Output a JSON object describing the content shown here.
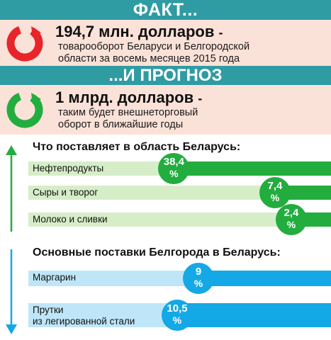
{
  "fact": {
    "banner": "ФАКТ...",
    "amount": "194,7 млн. долларов",
    "dash": "-",
    "description_line1": "товарооборот Беларуси и Белгородской",
    "description_line2": "области за восемь месяцев 2015 года"
  },
  "forecast": {
    "banner": "...И ПРОГНОЗ",
    "amount": "1 млрд. долларов",
    "dash": "-",
    "description_line1": "таким будет внешнеторговый",
    "description_line2": "оборот в ближайшие годы"
  },
  "colors": {
    "banner": "#2f9ba3",
    "info_bg": "#fbe2d8",
    "fact_icon": "#e8252b",
    "forecast_icon": "#22ad3e",
    "green_bar": "#22ad3e",
    "green_track": "#d6eec8",
    "blue_bar": "#14a8e6",
    "blue_track": "#bfe6f8"
  },
  "icons": {
    "fact": "red-circular-arrow-icon",
    "forecast": "green-circular-arrow-icon",
    "up_arrow": "green-up-arrow-icon",
    "down_arrow": "blue-down-arrow-icon"
  },
  "chart_data": [
    {
      "type": "bar",
      "title": "Что поставляет в область Беларусь:",
      "categories": [
        "Нефтепродукты",
        "Сыры и творог",
        "Молоко и сливки"
      ],
      "values": [
        38.4,
        7.4,
        2.4
      ],
      "value_labels": [
        "38,4",
        "7,4",
        "2,4"
      ],
      "unit": "%",
      "color": "#22ad3e"
    },
    {
      "type": "bar",
      "title": "Основные поставки Белгорода в Беларусь:",
      "categories": [
        "Маргарин",
        "Прутки из легированной стали"
      ],
      "category_lines": [
        [
          "Маргарин"
        ],
        [
          "Прутки",
          "из легированной стали"
        ]
      ],
      "values": [
        9,
        10.5
      ],
      "value_labels": [
        "9",
        "10,5"
      ],
      "unit": "%",
      "color": "#14a8e6"
    }
  ]
}
